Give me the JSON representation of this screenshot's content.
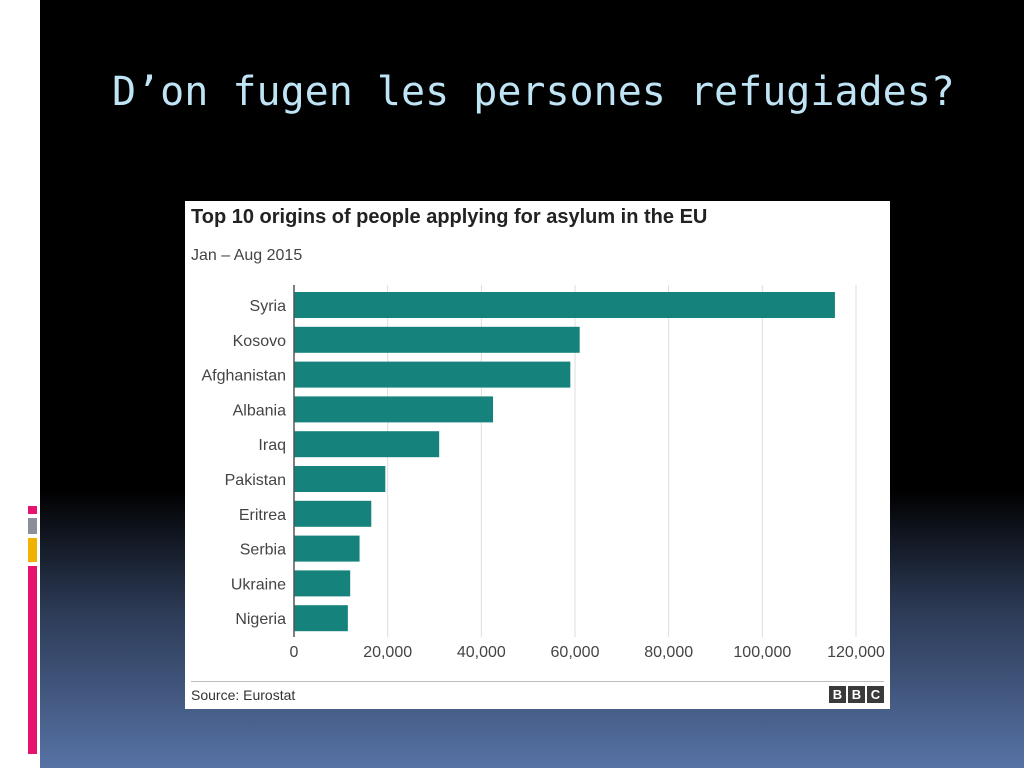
{
  "slide": {
    "title": "D’on fugen les persones refugiades?"
  },
  "colors": {
    "bar": "#15837b",
    "decoration_pink": "#e5126e",
    "decoration_yellow": "#f0b400",
    "decoration_gray": "#8a8f99"
  },
  "chart_data": {
    "type": "bar",
    "orientation": "horizontal",
    "title": "Top 10 origins of people applying for asylum in the EU",
    "subtitle": "Jan – Aug 2015",
    "categories": [
      "Syria",
      "Kosovo",
      "Afghanistan",
      "Albania",
      "Iraq",
      "Pakistan",
      "Eritrea",
      "Serbia",
      "Ukraine",
      "Nigeria"
    ],
    "values": [
      115500,
      61000,
      59000,
      42500,
      31000,
      19500,
      16500,
      14000,
      12000,
      11500
    ],
    "xticks": [
      "0",
      "20,000",
      "40,000",
      "60,000",
      "80,000",
      "100,000",
      "120,000"
    ],
    "xlim": [
      0,
      120000
    ],
    "grid": true,
    "source": "Source: Eurostat",
    "logo_text": [
      "B",
      "B",
      "C"
    ]
  }
}
